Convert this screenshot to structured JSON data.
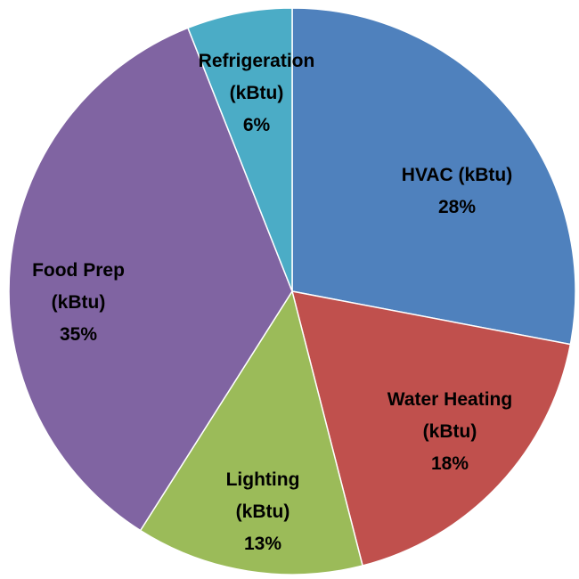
{
  "chart_data": {
    "type": "pie",
    "categories": [
      "HVAC (kBtu)",
      "Water Heating (kBtu)",
      "Lighting (kBtu)",
      "Food Prep (kBtu)",
      "Refrigeration (kBtu)"
    ],
    "values": [
      28,
      18,
      13,
      35,
      6
    ],
    "value_labels": [
      "28%",
      "18%",
      "13%",
      "35%",
      "6%"
    ],
    "colors": [
      "#4f81bd",
      "#c0504d",
      "#9bbb59",
      "#8064a2",
      "#4bacc6"
    ]
  }
}
